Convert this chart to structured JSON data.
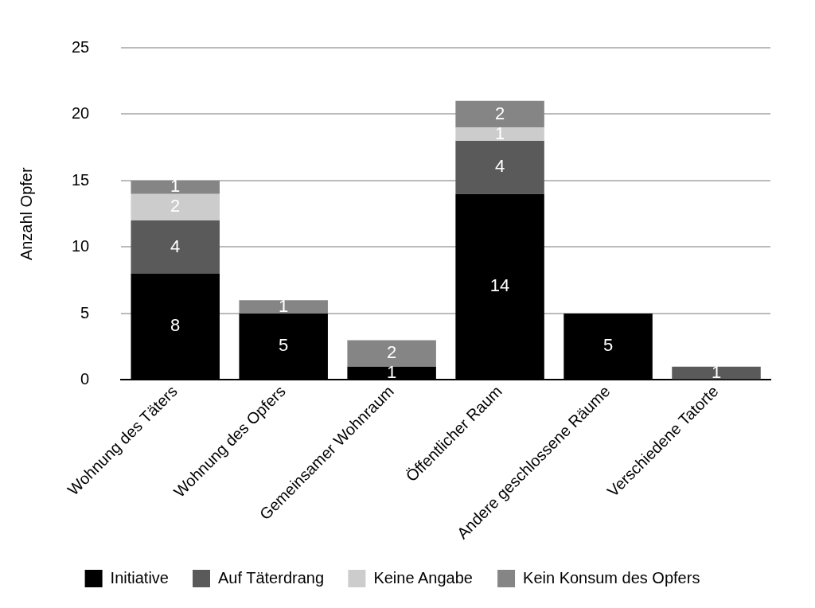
{
  "chart_data": {
    "type": "bar",
    "stacked": true,
    "ylabel": "Anzahl Opfer",
    "categories": [
      "Wohnung des Täters",
      "Wohnung des Opfers",
      "Gemeinsamer Wohnraum",
      "Öffentlicher Raum",
      "Andere geschlossene Räume",
      "Verschiedene Tatorte"
    ],
    "series": [
      {
        "name": "Initiative",
        "color": "#000000",
        "values": [
          8,
          5,
          1,
          14,
          5,
          null
        ]
      },
      {
        "name": "Auf Täterdrang",
        "color": "#5a5a5a",
        "values": [
          4,
          null,
          null,
          4,
          null,
          1
        ]
      },
      {
        "name": "Keine Angabe",
        "color": "#cccccc",
        "values": [
          2,
          null,
          null,
          1,
          null,
          null
        ]
      },
      {
        "name": "Kein Konsum des Opfers",
        "color": "#858585",
        "values": [
          1,
          1,
          2,
          2,
          null,
          null
        ]
      }
    ],
    "ylim": [
      0,
      25
    ],
    "yticks": [
      0,
      5,
      10,
      15,
      20,
      25
    ],
    "grid": "y",
    "legend": "bottom",
    "data_labels": true
  }
}
